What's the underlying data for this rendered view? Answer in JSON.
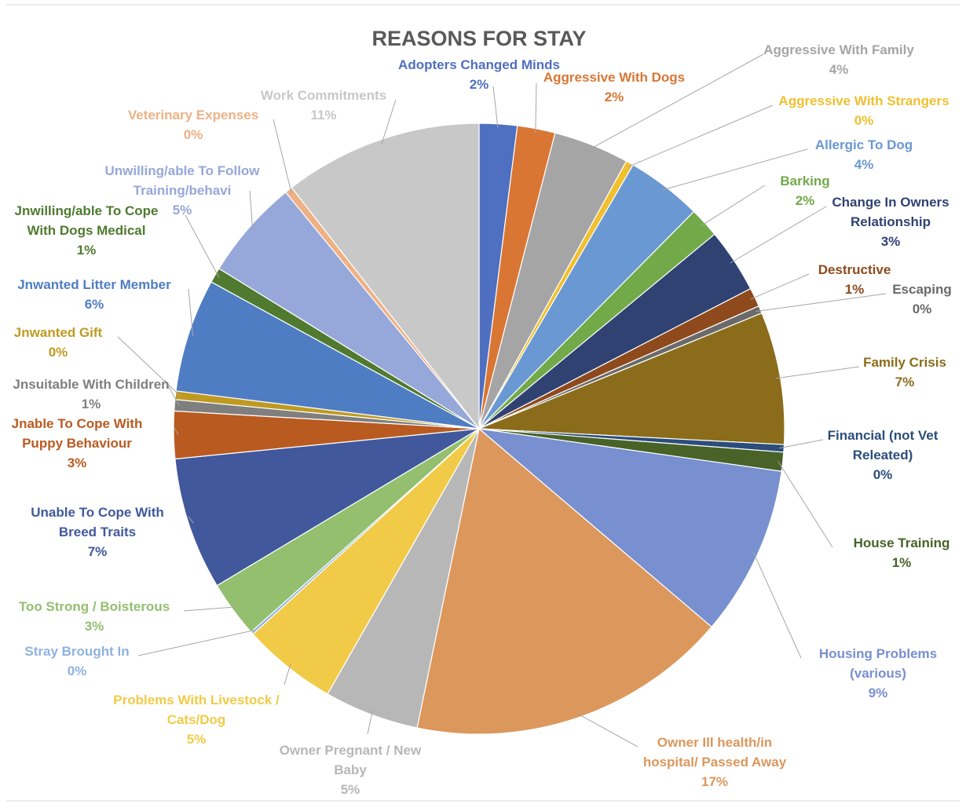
{
  "chart_data": {
    "type": "pie",
    "title": "REASONS FOR STAY",
    "slices": [
      {
        "label": [
          "Adopters Changed Minds"
        ],
        "value": 2,
        "value_label": "2%",
        "color": "#4f6fc0"
      },
      {
        "label": [
          "Aggressive With Dogs"
        ],
        "value": 2,
        "value_label": "2%",
        "color": "#d97634"
      },
      {
        "label": [
          "Aggressive With Family"
        ],
        "value": 4,
        "value_label": "4%",
        "color": "#a5a5a5"
      },
      {
        "label": [
          "Aggressive With Strangers"
        ],
        "value": 0.4,
        "value_label": "0%",
        "color": "#f0c030"
      },
      {
        "label": [
          "Allergic To Dog"
        ],
        "value": 4,
        "value_label": "4%",
        "color": "#6a98d2"
      },
      {
        "label": [
          "Barking"
        ],
        "value": 1.6,
        "value_label": "2%",
        "color": "#72aa4a"
      },
      {
        "label": [
          "Change In Owners",
          "Relationship"
        ],
        "value": 3.4,
        "value_label": "3%",
        "color": "#2f4272"
      },
      {
        "label": [
          "Destructive"
        ],
        "value": 1,
        "value_label": "1%",
        "color": "#8e4a1c"
      },
      {
        "label": [
          "Escaping"
        ],
        "value": 0.4,
        "value_label": "0%",
        "color": "#6a6a6a"
      },
      {
        "label": [
          "Family Crisis"
        ],
        "value": 7,
        "value_label": "7%",
        "color": "#8b6c1b"
      },
      {
        "label": [
          "Financial (not Vet",
          "Releated)"
        ],
        "value": 0.4,
        "value_label": "0%",
        "color": "#2b4d7c"
      },
      {
        "label": [
          "House Training"
        ],
        "value": 1,
        "value_label": "1%",
        "color": "#486228"
      },
      {
        "label": [
          "Housing Problems",
          "(various)"
        ],
        "value": 9,
        "value_label": "9%",
        "color": "#788fd0"
      },
      {
        "label": [
          "Owner Ill health/in",
          "hospital/ Passed Away"
        ],
        "value": 17,
        "value_label": "17%",
        "color": "#dc975c"
      },
      {
        "label": [
          "Owner Pregnant / New",
          "Baby"
        ],
        "value": 5,
        "value_label": "5%",
        "color": "#b7b7b7"
      },
      {
        "label": [
          "Problems With Livestock /",
          "Cats/Dog"
        ],
        "value": 5,
        "value_label": "5%",
        "color": "#f1cb47"
      },
      {
        "label": [
          "Stray Brought In"
        ],
        "value": 0.15,
        "value_label": "0%",
        "color": "#8fb2de"
      },
      {
        "label": [
          "Too Strong / Boisterous"
        ],
        "value": 3,
        "value_label": "3%",
        "color": "#93bf6f"
      },
      {
        "label": [
          "Unable To Cope With",
          "Breed Traits"
        ],
        "value": 7,
        "value_label": "7%",
        "color": "#41589c"
      },
      {
        "label": [
          "Jnable To Cope With",
          "Puppy Behaviour"
        ],
        "value": 2.5,
        "value_label": "3%",
        "color": "#b95a20"
      },
      {
        "label": [
          "Jnsuitable With Children"
        ],
        "value": 0.6,
        "value_label": "1%",
        "color": "#7f7f7f"
      },
      {
        "label": [
          "Jnwanted Gift"
        ],
        "value": 0.45,
        "value_label": "0%",
        "color": "#bf9a22"
      },
      {
        "label": [
          "Jnwanted Litter Member"
        ],
        "value": 6,
        "value_label": "6%",
        "color": "#4e7dc3"
      },
      {
        "label": [
          "Jnwilling/able To Cope",
          "With Dogs Medical"
        ],
        "value": 0.8,
        "value_label": "1%",
        "color": "#4f7a30"
      },
      {
        "label": [
          "Unwilling/able To Follow",
          "Training/behavi"
        ],
        "value": 5.3,
        "value_label": "5%",
        "color": "#96a7da"
      },
      {
        "label": [
          "Veterinary Expenses"
        ],
        "value": 0.4,
        "value_label": "0%",
        "color": "#eeb185"
      },
      {
        "label": [
          "Work Commitments"
        ],
        "value": 10.5,
        "value_label": "11%",
        "color": "#c8c8c8"
      }
    ],
    "label_colors": [
      "#4f6fc0",
      "#d97634",
      "#a5a5a5",
      "#f0c030",
      "#6a98d2",
      "#72aa4a",
      "#2f4272",
      "#8e4a1c",
      "#6a6a6a",
      "#8b6c1b",
      "#2b4d7c",
      "#486228",
      "#788fd0",
      "#dc975c",
      "#b7b7b7",
      "#f1cb47",
      "#8fb2de",
      "#93bf6f",
      "#41589c",
      "#b95a20",
      "#7f7f7f",
      "#bf9a22",
      "#4e7dc3",
      "#4f7a30",
      "#96a7da",
      "#eeb185",
      "#c8c8c8"
    ]
  }
}
